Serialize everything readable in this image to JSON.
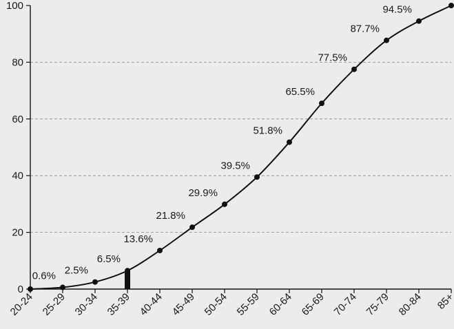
{
  "chart_data": {
    "type": "line",
    "categories": [
      "20-24",
      "25-29",
      "30-34",
      "35-39",
      "40-44",
      "45-49",
      "50-54",
      "55-59",
      "60-64",
      "65-69",
      "70-74",
      "75-79",
      "80-84",
      "85+"
    ],
    "series": [
      {
        "values": [
          0,
          0.6,
          2.5,
          6.5,
          13.6,
          21.8,
          29.9,
          39.5,
          51.8,
          65.5,
          77.5,
          87.7,
          94.5,
          100
        ]
      }
    ],
    "data_labels": [
      "",
      "0.6%",
      "2.5%",
      "6.5%",
      "13.6%",
      "21.8%",
      "29.9%",
      "39.5%",
      "51.8%",
      "65.5%",
      "77.5%",
      "87.7%",
      "94.5%",
      ""
    ],
    "marker_category": "35-39",
    "ylim": [
      0,
      100
    ],
    "yticks": [
      0,
      20,
      40,
      60,
      80,
      100
    ],
    "grid": "horizontal dashed",
    "title": "",
    "xlabel": "",
    "ylabel": ""
  }
}
